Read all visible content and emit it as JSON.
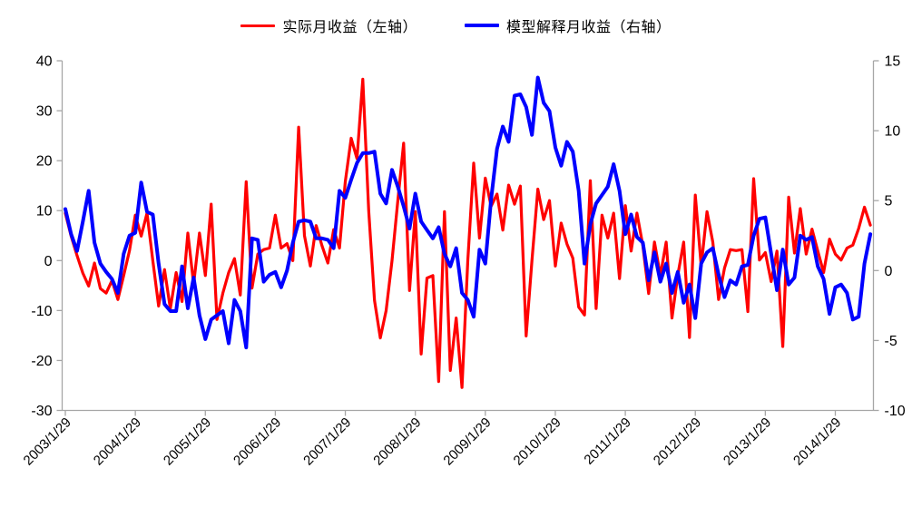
{
  "legend": {
    "items": [
      {
        "label": "实际月收益（左轴）",
        "color": "#FF0000"
      },
      {
        "label": "模型解释月收益（右轴）",
        "color": "#0000FF"
      }
    ]
  },
  "colors": {
    "axis": "#A6A6A6",
    "text": "#000000",
    "background": "#FFFFFF"
  },
  "chart_data": {
    "type": "line",
    "x_unit": "month",
    "x_start": "2003/1",
    "x_end": "2014/7",
    "grid": false,
    "legend_position": "top-center",
    "left_axis": {
      "min": -30,
      "max": 40,
      "ticks": [
        "40",
        "30",
        "20",
        "10",
        "0",
        "-10",
        "-20",
        "-30"
      ],
      "tick_values": [
        40,
        30,
        20,
        10,
        0,
        -10,
        -20,
        -30
      ]
    },
    "right_axis": {
      "min": -10,
      "max": 15,
      "ticks": [
        "15",
        "10",
        "5",
        "0",
        "-5",
        "-10"
      ],
      "tick_values": [
        15,
        10,
        5,
        0,
        -5,
        -10
      ]
    },
    "x_axis": {
      "tick_labels": [
        "2003/1/29",
        "2004/1/29",
        "2005/1/29",
        "2006/1/29",
        "2007/1/29",
        "2008/1/29",
        "2009/1/29",
        "2010/1/29",
        "2011/1/29",
        "2012/1/29",
        "2013/1/29",
        "2014/1/29"
      ],
      "months_per_tick": 12,
      "label_rotation_deg": -45
    },
    "series": [
      {
        "name": "实际月收益（左轴）",
        "axis": "left",
        "color": "#FF0000",
        "stroke_width": 3.2,
        "values": [
          9.5,
          4.9,
          1.0,
          -2.5,
          -5.1,
          -0.5,
          -5.6,
          -6.5,
          -4.0,
          -7.8,
          -3.0,
          2.0,
          9.1,
          4.9,
          9.5,
          0.0,
          -9.1,
          -1.8,
          -9.6,
          -2.4,
          -8.2,
          5.5,
          -4.7,
          5.5,
          -3.0,
          11.3,
          -11.8,
          -6.5,
          -2.4,
          0.4,
          -6.9,
          15.8,
          -5.5,
          1.3,
          2.2,
          2.5,
          9.1,
          2.5,
          3.4,
          0.0,
          26.7,
          5.0,
          -1.1,
          7.0,
          3.0,
          -0.5,
          6.2,
          2.5,
          15.8,
          24.5,
          20.4,
          36.3,
          10.0,
          -8.0,
          -15.5,
          -10.0,
          0.0,
          12.0,
          23.5,
          -6.0,
          9.8,
          -18.7,
          -3.5,
          -3.0,
          -24.2,
          9.8,
          -22.0,
          -11.5,
          -25.4,
          0.0,
          19.5,
          4.5,
          16.5,
          10.9,
          13.3,
          6.1,
          15.1,
          11.3,
          14.9,
          -15.1,
          0.0,
          14.3,
          8.2,
          12.0,
          -1.1,
          7.5,
          3.3,
          0.5,
          -9.3,
          -10.9,
          16.0,
          -9.6,
          9.1,
          4.5,
          9.5,
          -3.6,
          11.0,
          1.9,
          9.5,
          3.0,
          -6.6,
          3.7,
          -3.0,
          3.7,
          -11.5,
          -2.9,
          3.7,
          -15.4,
          13.1,
          -1.1,
          9.8,
          3.7,
          -7.8,
          -1.5,
          2.2,
          2.0,
          2.2,
          -10.2,
          16.4,
          0.1,
          1.6,
          -4.2,
          1.9,
          -17.2,
          12.7,
          1.5,
          10.4,
          1.3,
          6.3,
          1.9,
          -2.4,
          4.3,
          1.3,
          0.1,
          2.5,
          3.1,
          6.4,
          10.7,
          7.1
        ]
      },
      {
        "name": "模型解释月收益（右轴）",
        "axis": "right",
        "color": "#0000FF",
        "stroke_width": 4,
        "values": [
          4.4,
          2.6,
          1.4,
          3.5,
          5.7,
          2.0,
          0.5,
          -0.1,
          -0.6,
          -1.6,
          1.2,
          2.5,
          2.7,
          6.3,
          4.2,
          4.0,
          0.5,
          -2.4,
          -2.9,
          -2.9,
          0.3,
          -2.7,
          -0.5,
          -3.2,
          -4.9,
          -3.5,
          -3.2,
          -2.9,
          -5.2,
          -2.1,
          -2.9,
          -5.5,
          2.3,
          2.2,
          -0.8,
          -0.3,
          -0.1,
          -1.2,
          0.0,
          2.0,
          3.5,
          3.6,
          3.5,
          2.3,
          2.3,
          2.2,
          1.6,
          5.7,
          5.2,
          6.5,
          7.7,
          8.4,
          8.4,
          8.5,
          5.5,
          4.8,
          7.2,
          6.0,
          4.6,
          3.0,
          5.5,
          3.5,
          2.9,
          2.3,
          3.1,
          1.2,
          0.3,
          1.6,
          -1.6,
          -2.1,
          -3.3,
          1.5,
          0.5,
          5.1,
          8.7,
          10.3,
          9.2,
          12.5,
          12.6,
          11.7,
          9.7,
          13.8,
          12.0,
          11.4,
          8.8,
          7.5,
          9.2,
          8.5,
          5.7,
          0.5,
          3.3,
          4.8,
          5.4,
          6.0,
          7.6,
          5.7,
          2.6,
          4.0,
          2.4,
          2.0,
          -0.7,
          1.3,
          -0.8,
          0.5,
          -1.6,
          -0.1,
          -2.3,
          -1.0,
          -3.4,
          0.5,
          1.3,
          1.6,
          -0.3,
          -1.9,
          -0.7,
          -1.0,
          0.3,
          0.4,
          2.5,
          3.7,
          3.8,
          1.2,
          -1.4,
          1.5,
          -1.0,
          -0.5,
          2.5,
          2.2,
          2.4,
          0.3,
          -0.6,
          -3.1,
          -1.2,
          -1.0,
          -1.6,
          -3.5,
          -3.3,
          0.5,
          2.6
        ]
      }
    ]
  }
}
